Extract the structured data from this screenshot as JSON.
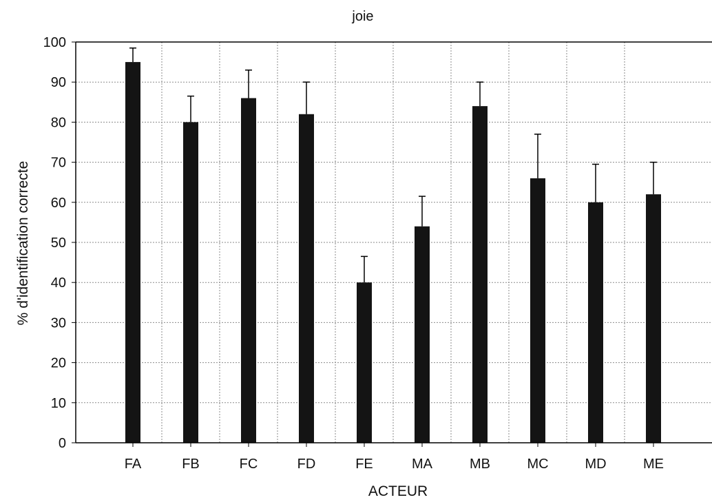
{
  "chart_data": {
    "type": "bar",
    "title": "joie",
    "xlabel": "ACTEUR",
    "ylabel": "% d'identification correcte",
    "categories": [
      "FA",
      "FB",
      "FC",
      "FD",
      "FE",
      "MA",
      "MB",
      "MC",
      "MD",
      "ME"
    ],
    "values": [
      95,
      80,
      86,
      82,
      40,
      54,
      84,
      66,
      60,
      62
    ],
    "error_upper": [
      98.5,
      86.5,
      93,
      90,
      46.5,
      61.5,
      90,
      77,
      69.5,
      70
    ],
    "ylim": [
      0,
      100
    ],
    "yticks": [
      0,
      10,
      20,
      30,
      40,
      50,
      60,
      70,
      80,
      90,
      100
    ],
    "grid": true,
    "error_bars": true,
    "colors": {
      "bar": "#141414",
      "grid": "#8a8a8a",
      "axis": "#000000"
    }
  }
}
